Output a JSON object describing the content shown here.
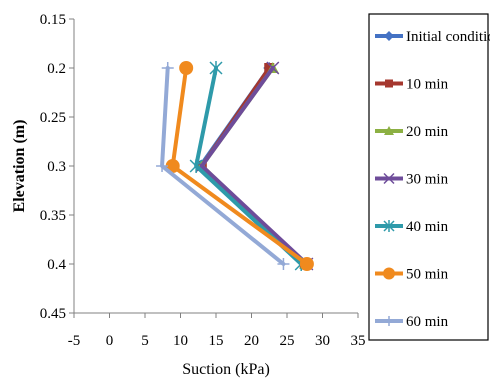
{
  "chart_data": {
    "type": "line",
    "xlabel": "Suction (kPa)",
    "ylabel": "Elevation (m)",
    "xlim": [
      -5,
      35
    ],
    "ylim": [
      0.15,
      0.45
    ],
    "y_inverted": true,
    "x_ticks": [
      "-5",
      "0",
      "5",
      "10",
      "15",
      "20",
      "25",
      "30",
      "35"
    ],
    "y_ticks": [
      "0.15",
      "0.2",
      "0.25",
      "0.3",
      "0.35",
      "0.4",
      "0.45"
    ],
    "grid": false,
    "legend_position": "right",
    "series": [
      {
        "name": "Initial condition",
        "color": "#4472C4",
        "marker": "diamond",
        "points": [
          [
            22.5,
            0.2
          ],
          [
            12.8,
            0.3
          ],
          [
            27.5,
            0.4
          ]
        ]
      },
      {
        "name": "10 min",
        "color": "#A5372E",
        "marker": "square",
        "points": [
          [
            22.5,
            0.2
          ],
          [
            13.0,
            0.3
          ],
          [
            27.5,
            0.4
          ]
        ]
      },
      {
        "name": "20 min",
        "color": "#8CB043",
        "marker": "triangle",
        "points": [
          [
            23.0,
            0.2
          ],
          [
            13.0,
            0.3
          ],
          [
            27.6,
            0.4
          ]
        ]
      },
      {
        "name": "30 min",
        "color": "#6E4C9A",
        "marker": "x",
        "points": [
          [
            23.0,
            0.2
          ],
          [
            13.0,
            0.3
          ],
          [
            27.8,
            0.4
          ]
        ]
      },
      {
        "name": "40 min",
        "color": "#2E9AAA",
        "marker": "star",
        "points": [
          [
            15.0,
            0.2
          ],
          [
            12.2,
            0.3
          ],
          [
            27.0,
            0.4
          ]
        ]
      },
      {
        "name": "50 min",
        "color": "#F08A1E",
        "marker": "circle",
        "points": [
          [
            10.8,
            0.2
          ],
          [
            8.9,
            0.3
          ],
          [
            27.8,
            0.4
          ]
        ]
      },
      {
        "name": "60 min",
        "color": "#93A9D6",
        "marker": "plus",
        "points": [
          [
            8.2,
            0.2
          ],
          [
            7.4,
            0.3
          ],
          [
            24.5,
            0.4
          ]
        ]
      }
    ]
  }
}
